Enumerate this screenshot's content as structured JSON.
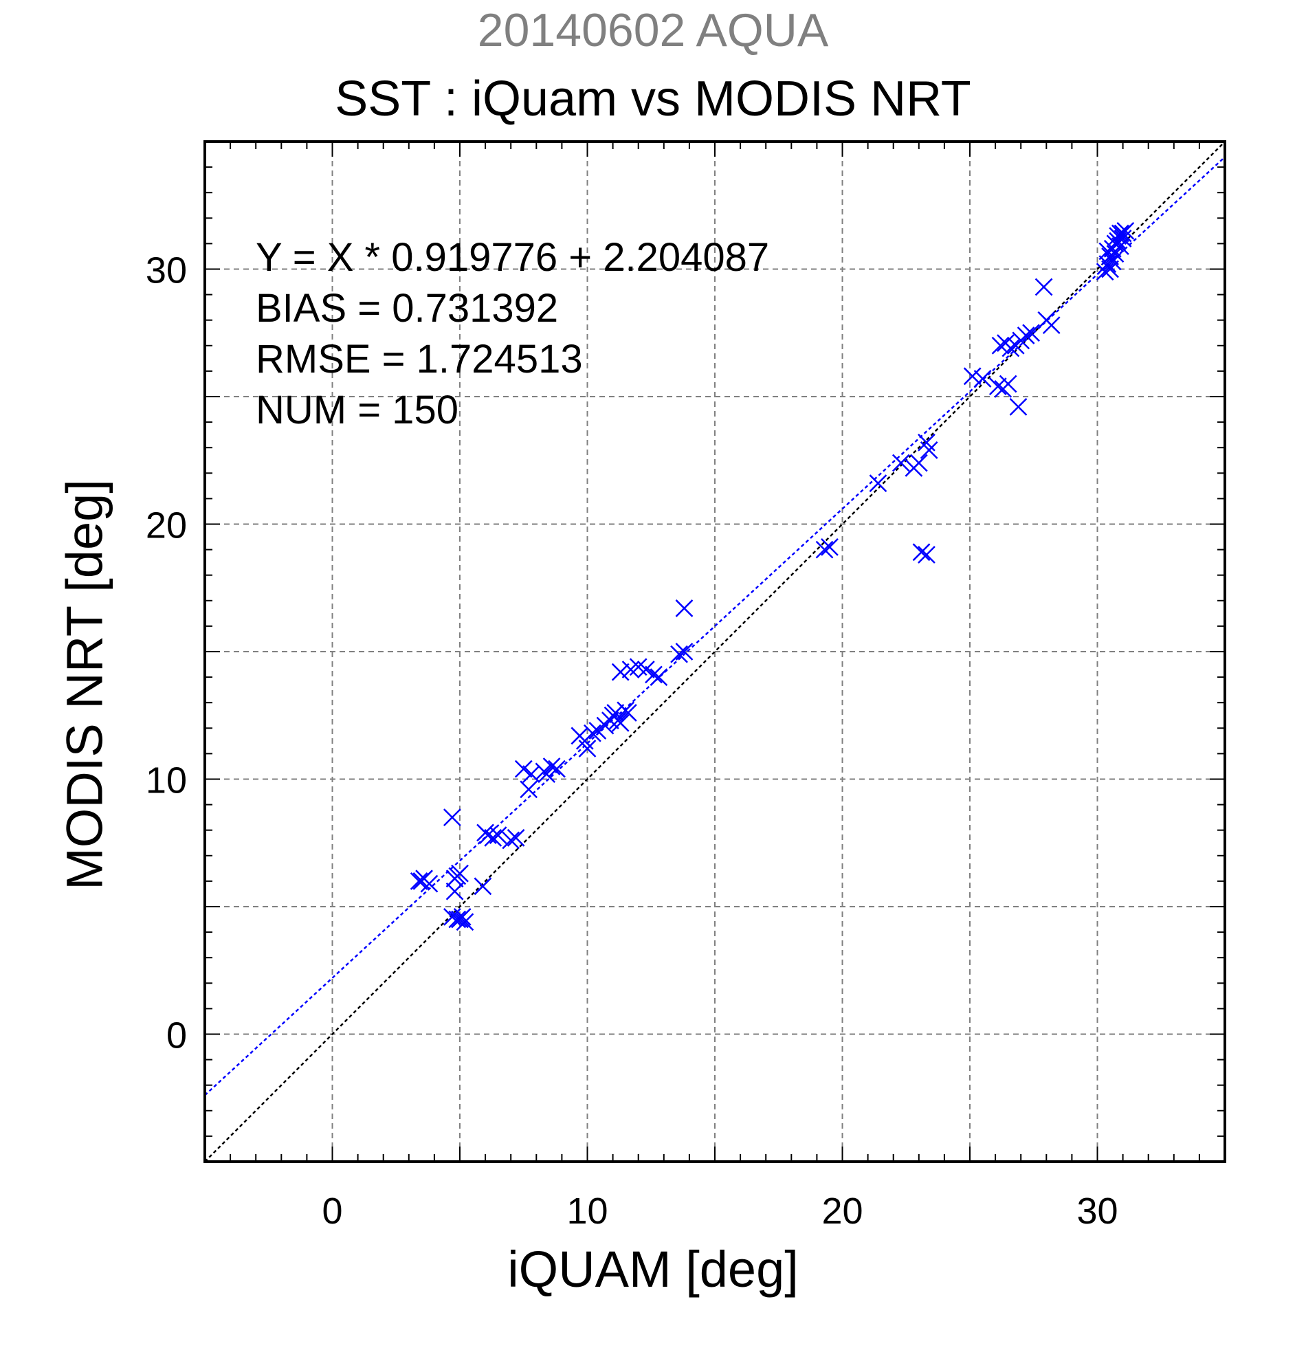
{
  "date_title": "20140602 AQUA",
  "chart_data": {
    "type": "scatter",
    "title": "SST : iQuam vs MODIS NRT",
    "xlabel": "iQUAM [deg]",
    "ylabel": "MODIS NRT [deg]",
    "xlim": [
      -5,
      35
    ],
    "ylim": [
      -5,
      35
    ],
    "xticks": [
      0,
      10,
      20,
      30
    ],
    "yticks": [
      0,
      10,
      20,
      30
    ],
    "grid": true,
    "colors": {
      "points": "#0000ff",
      "fit_line": "#0000ff",
      "identity_line": "#000000",
      "date_title": "#808080"
    },
    "fit": {
      "slope": 0.919776,
      "intercept": 2.204087
    },
    "stats": [
      "Y = X * 0.919776 + 2.204087",
      "BIAS = 0.731392",
      "RMSE = 1.724513",
      "NUM = 150"
    ],
    "series": [
      {
        "marker": "x",
        "x": [
          3.4,
          3.6,
          3.8,
          3.5,
          4.7,
          4.8,
          4.9,
          5.0,
          4.8,
          4.7,
          4.9,
          5.1,
          5.0,
          5.2,
          5.9,
          6.0,
          6.1,
          6.3,
          6.5,
          7.0,
          7.2,
          7.5,
          7.7,
          7.8,
          8.3,
          8.4,
          8.6,
          8.8,
          9.7,
          9.9,
          10.0,
          10.2,
          10.4,
          10.7,
          10.9,
          11.0,
          11.1,
          11.2,
          11.3,
          11.5,
          11.6,
          11.3,
          11.7,
          12.0,
          12.3,
          12.6,
          12.8,
          13.6,
          13.8,
          13.8,
          19.3,
          19.5,
          21.4,
          22.3,
          22.8,
          23.0,
          23.3,
          23.4,
          23.1,
          23.3,
          25.1,
          25.5,
          26.1,
          26.3,
          26.5,
          26.2,
          26.4,
          26.6,
          26.8,
          27.0,
          27.2,
          27.4,
          26.9,
          27.9,
          28.0,
          28.2,
          30.3,
          30.4,
          30.5,
          30.6,
          30.7,
          30.8,
          30.9,
          31.0,
          31.1,
          30.5,
          30.6,
          30.7,
          30.8,
          30.4,
          30.9,
          31.0
        ],
        "y": [
          6.0,
          6.1,
          5.9,
          6.0,
          8.5,
          6.1,
          6.2,
          6.3,
          5.6,
          4.6,
          4.5,
          4.6,
          4.5,
          4.4,
          5.8,
          7.9,
          7.8,
          7.7,
          7.8,
          7.6,
          7.7,
          10.4,
          9.6,
          10.2,
          10.3,
          10.2,
          10.5,
          10.4,
          11.7,
          11.5,
          11.2,
          11.8,
          11.9,
          12.1,
          12.3,
          12.5,
          12.6,
          12.3,
          12.2,
          12.7,
          12.6,
          14.2,
          14.3,
          14.4,
          14.3,
          14.1,
          14.0,
          14.9,
          15.0,
          16.7,
          19.0,
          19.1,
          21.6,
          22.4,
          22.2,
          22.4,
          23.2,
          22.9,
          18.9,
          18.8,
          25.8,
          25.7,
          25.4,
          25.3,
          25.5,
          27.0,
          27.1,
          26.9,
          27.0,
          27.2,
          27.4,
          27.5,
          24.6,
          29.3,
          28.0,
          27.8,
          29.9,
          30.2,
          30.5,
          30.8,
          31.0,
          31.3,
          31.4,
          31.2,
          31.5,
          30.0,
          30.3,
          30.6,
          31.1,
          30.7,
          30.9,
          31.4
        ]
      }
    ]
  }
}
